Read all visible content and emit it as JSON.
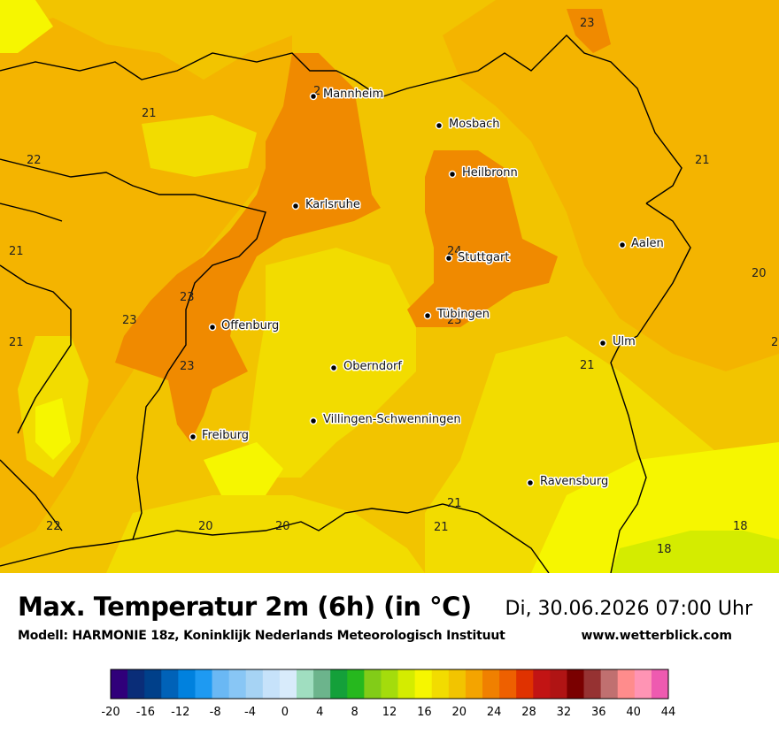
{
  "title": "Max. Temperatur 2m (6h) (in °C)",
  "datetime": "Di, 30.06.2026 07:00 Uhr",
  "model": "Modell: HARMONIE 18z, Koninklijk Nederlands Meteorologisch Instituut",
  "website": "www.wetterblick.com",
  "cities": [
    {
      "name": "Mannheim"
    },
    {
      "name": "Mosbach"
    },
    {
      "name": "Heilbronn"
    },
    {
      "name": "Karlsruhe"
    },
    {
      "name": "Stuttgart"
    },
    {
      "name": "Aalen"
    },
    {
      "name": "Tübingen"
    },
    {
      "name": "Offenburg"
    },
    {
      "name": "Ulm"
    },
    {
      "name": "Oberndorf"
    },
    {
      "name": "Villingen-Schwenningen"
    },
    {
      "name": "Freiburg"
    },
    {
      "name": "Ravensburg"
    }
  ],
  "isolines": [
    "23",
    "21",
    "22",
    "21",
    "21",
    "20",
    "21",
    "23",
    "23",
    "24",
    "23",
    "21",
    "23",
    "21",
    "22",
    "20",
    "20",
    "21",
    "18",
    "18",
    "2",
    "2"
  ],
  "legend": {
    "ticks": [
      "-20",
      "-16",
      "-12",
      "-8",
      "-4",
      "0",
      "4",
      "8",
      "12",
      "16",
      "20",
      "24",
      "28",
      "32",
      "36",
      "40",
      "44"
    ],
    "colors": [
      "#30007a",
      "#0a2d78",
      "#00408a",
      "#0062b8",
      "#0081de",
      "#1e9af2",
      "#6ab8f4",
      "#88c6f5",
      "#a6d3f4",
      "#c6e2fa",
      "#d8ebfb",
      "#a0dec0",
      "#6cb48c",
      "#14a03a",
      "#26b81e",
      "#82cc18",
      "#a4dc0c",
      "#d4ec00",
      "#f6f600",
      "#f2dc00",
      "#f2c400",
      "#f4a400",
      "#f08000",
      "#ee6000",
      "#e03200",
      "#c21414",
      "#b01414",
      "#7a0000",
      "#963232",
      "#c07070",
      "#ff8c8c",
      "#ff94b4",
      "#ee5ab0"
    ]
  }
}
